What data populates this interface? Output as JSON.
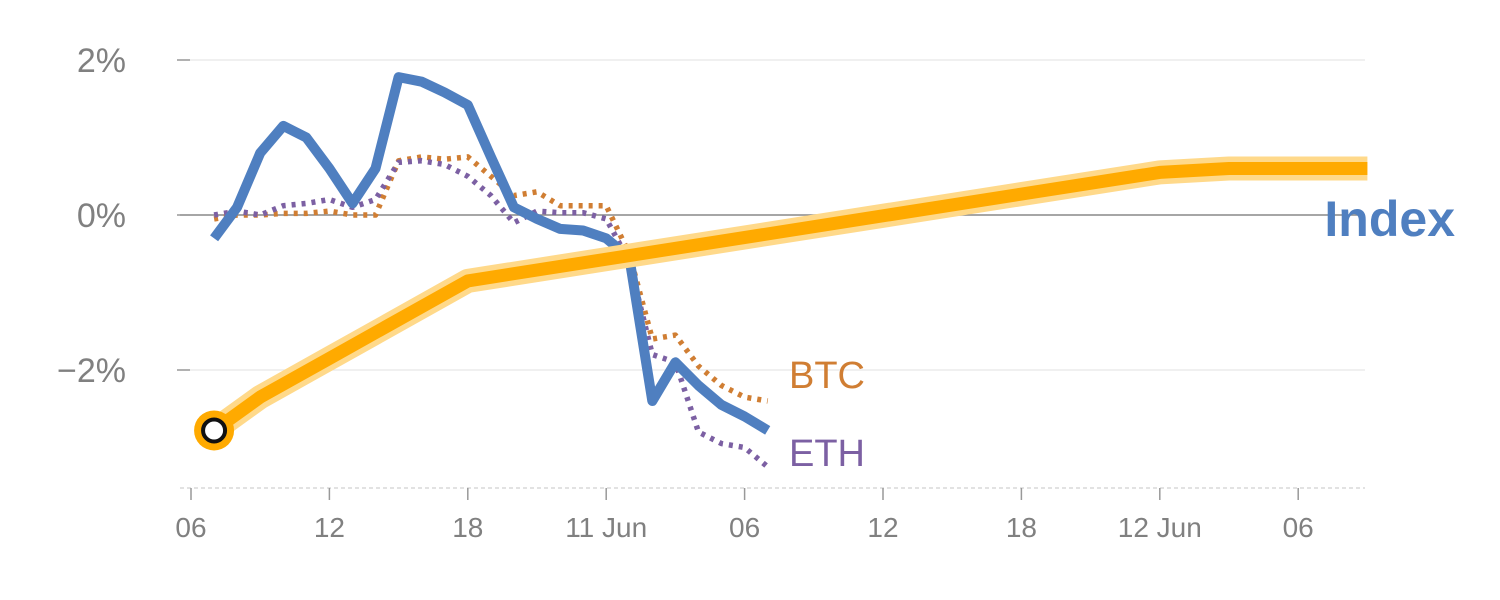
{
  "chart_data": {
    "type": "line",
    "title": "",
    "xlabel": "",
    "ylabel": "",
    "ylim": [
      -3.5,
      2.0
    ],
    "x_tick_labels": [
      "06",
      "12",
      "18",
      "11 Jun",
      "06",
      "12",
      "18",
      "12 Jun",
      "06"
    ],
    "y_ticks": [
      {
        "value": 2,
        "label": "2%"
      },
      {
        "value": 0,
        "label": "0%"
      },
      {
        "value": -2,
        "label": "−2%"
      }
    ],
    "grid": true,
    "x": [
      "06",
      "07",
      "08",
      "09",
      "10",
      "11",
      "12",
      "13",
      "14",
      "15",
      "16",
      "17",
      "18",
      "19",
      "20",
      "21",
      "22",
      "23",
      "11 Jun 00",
      "01",
      "02",
      "03",
      "04",
      "05",
      "06",
      "07"
    ],
    "series": [
      {
        "name": "Index",
        "color": "#4f7fc0",
        "style": "solid",
        "values": [
          null,
          -0.3,
          0.1,
          0.8,
          1.15,
          1.0,
          0.6,
          0.15,
          0.6,
          1.78,
          1.72,
          1.58,
          1.42,
          0.75,
          0.1,
          -0.05,
          -0.18,
          -0.2,
          -0.3,
          -0.55,
          -2.4,
          -1.9,
          -2.2,
          -2.45,
          -2.6,
          -2.78
        ]
      },
      {
        "name": "BTC",
        "color": "#d07e33",
        "style": "dotted",
        "values": [
          null,
          -0.05,
          0.0,
          0.0,
          0.02,
          0.02,
          0.05,
          0.0,
          0.0,
          0.7,
          0.75,
          0.72,
          0.75,
          0.5,
          0.25,
          0.3,
          0.12,
          0.12,
          0.12,
          -0.5,
          -1.6,
          -1.55,
          -1.95,
          -2.2,
          -2.35,
          -2.4
        ]
      },
      {
        "name": "ETH",
        "color": "#7c60a3",
        "style": "dotted",
        "values": [
          null,
          0.0,
          0.05,
          0.0,
          0.12,
          0.15,
          0.2,
          0.1,
          0.2,
          0.68,
          0.7,
          0.65,
          0.5,
          0.25,
          -0.1,
          0.05,
          0.03,
          0.03,
          -0.05,
          -0.6,
          -1.8,
          -1.9,
          -2.8,
          -2.95,
          -3.0,
          -3.25
        ]
      }
    ],
    "projection": {
      "color": "#ffaa00",
      "start_marker": {
        "x": "07",
        "value": -2.78
      },
      "points": [
        {
          "x": "07",
          "value": -2.78
        },
        {
          "x": "09",
          "value": -2.35
        },
        {
          "x": "12",
          "value": -1.85
        },
        {
          "x": "18",
          "value": -0.85
        },
        {
          "x": "12 Jun",
          "value": 0.55
        },
        {
          "x": "12 Jun 03",
          "value": 0.6
        },
        {
          "x": "12 Jun 09",
          "value": 0.6
        }
      ]
    },
    "label_texts": {
      "index": "Index",
      "btc": "BTC",
      "eth": "ETH"
    },
    "colors": {
      "grid": "#e8e8e8",
      "zero_line": "#888888",
      "tick_text": "#808080",
      "axis": "#d8d8d8"
    }
  }
}
